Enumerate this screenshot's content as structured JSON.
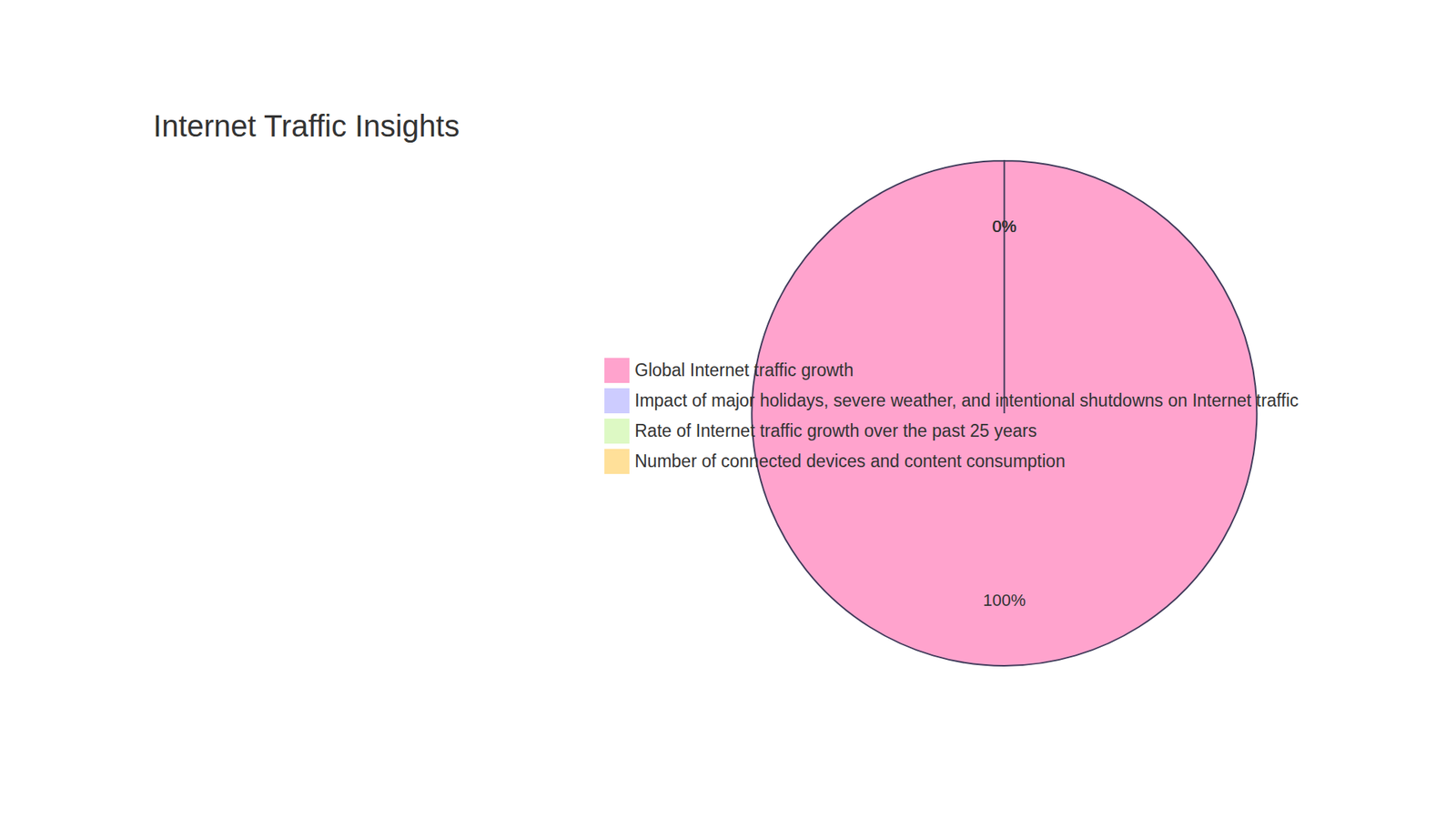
{
  "chart_data": {
    "type": "pie",
    "title": "Internet Traffic Insights",
    "categories": [
      "Global Internet traffic growth",
      "Impact of major holidays, severe weather, and intentional shutdowns on Internet traffic",
      "Rate of Internet traffic growth over the past 25 years",
      "Number of connected devices and content consumption"
    ],
    "values": [
      100,
      0,
      0,
      0
    ],
    "value_labels": [
      "100%",
      "0%",
      "0%",
      "0%"
    ],
    "colors": [
      "#ffa3cd",
      "#cdccff",
      "#ddf9c4",
      "#ffe099"
    ],
    "data_labels": true,
    "legend": "right"
  }
}
